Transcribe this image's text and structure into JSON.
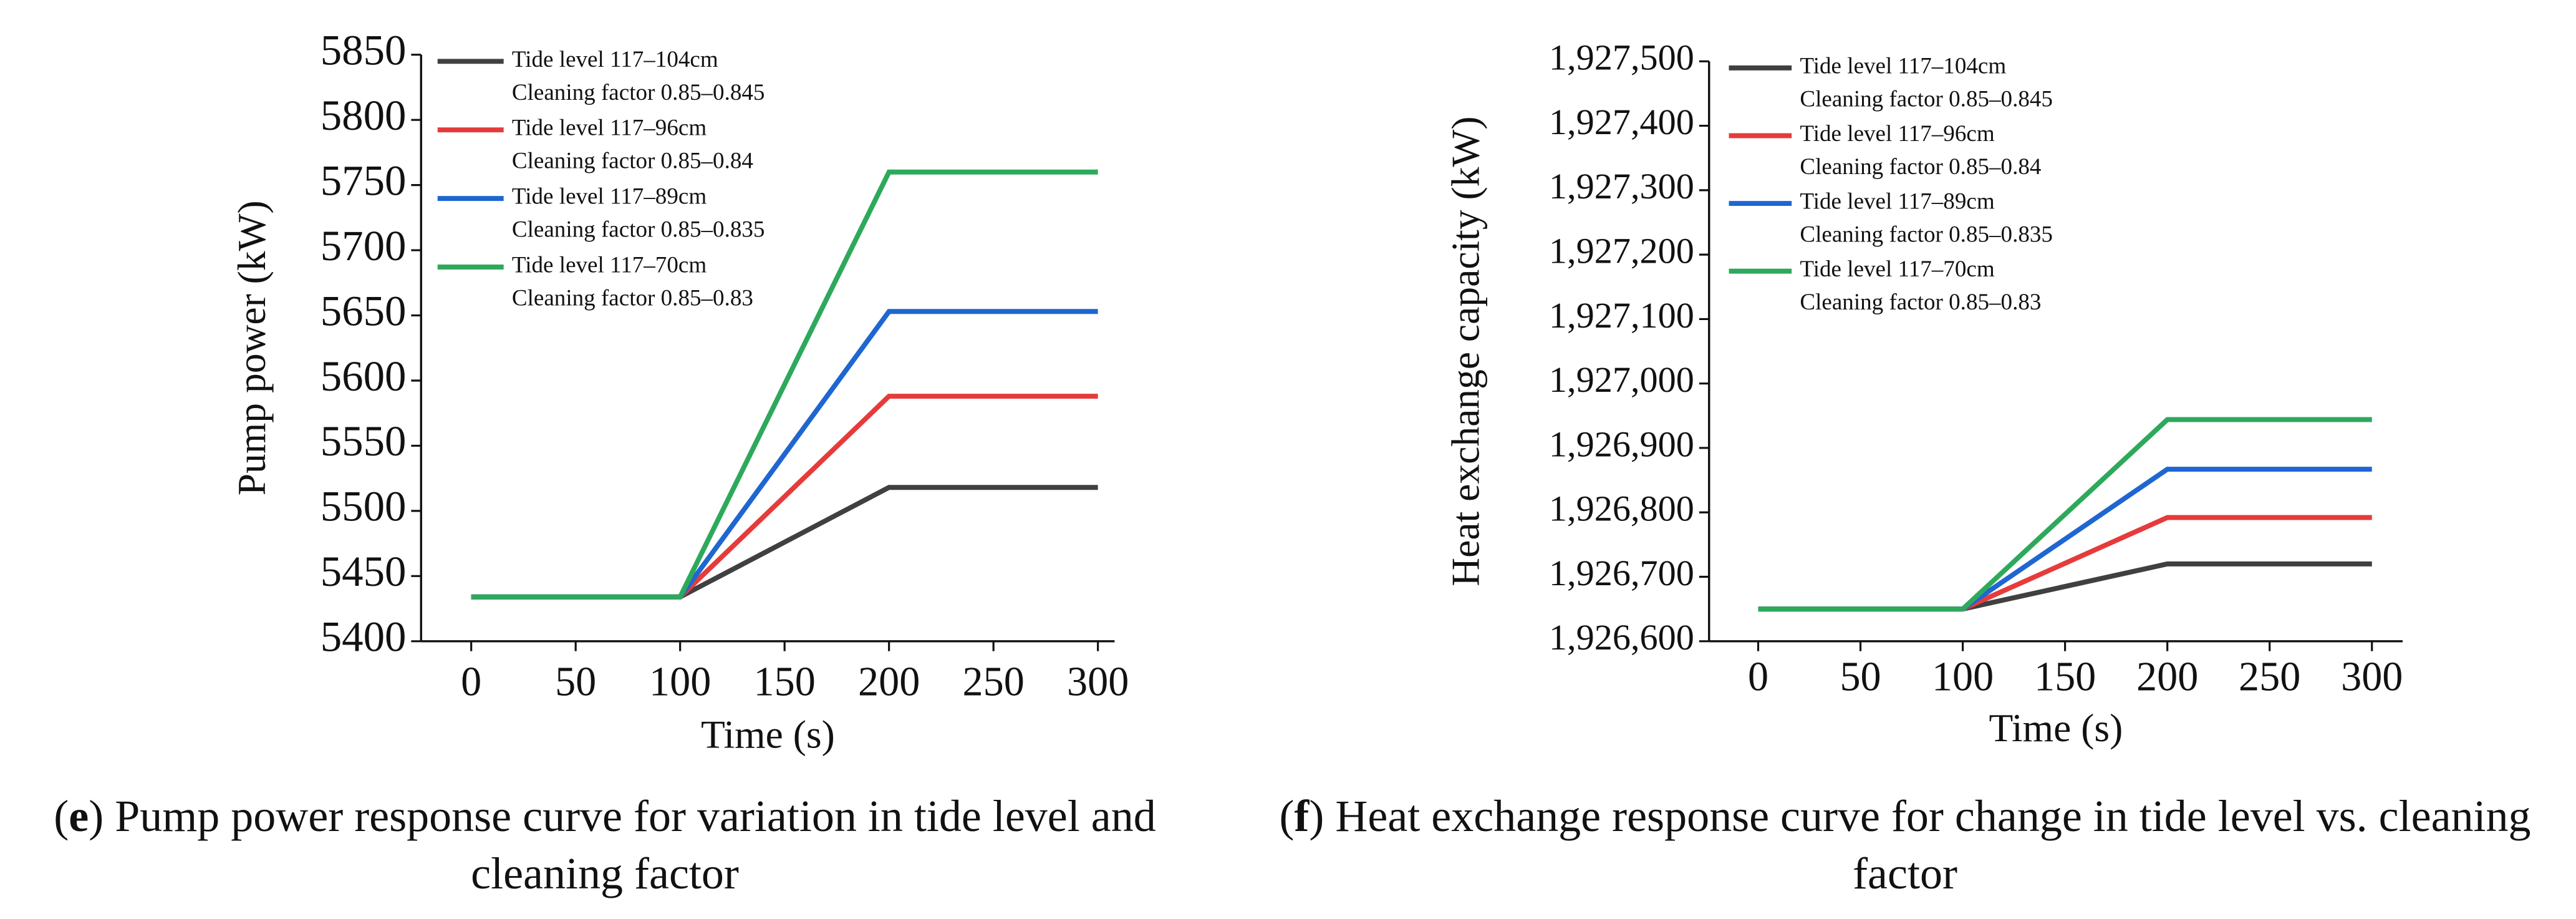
{
  "chart_data": [
    {
      "type": "line",
      "x_label": "Time (s)",
      "y_label": "Pump power (kW)",
      "caption": [
        "(",
        "e",
        ") Pump power response curve for variation in tide level and cleaning factor"
      ],
      "x": [
        0,
        100,
        200,
        300
      ],
      "xlim": [
        -24,
        308
      ],
      "xticks": [
        0,
        50,
        100,
        150,
        200,
        250,
        300
      ],
      "ylim": [
        5400,
        5850
      ],
      "yticks": [
        5400,
        5450,
        5500,
        5550,
        5600,
        5650,
        5700,
        5750,
        5800,
        5850
      ],
      "series": [
        {
          "name": "Tide level 117–104cm",
          "description": "Cleaning factor 0.85–0.845",
          "color": "#404040",
          "values": [
            5434,
            5434,
            5518,
            5518
          ]
        },
        {
          "name": "Tide level 117–96cm",
          "description": "Cleaning factor 0.85–0.84",
          "color": "#e63b3b",
          "values": [
            5434,
            5434,
            5588,
            5588
          ]
        },
        {
          "name": "Tide level 117–89cm",
          "description": "Cleaning factor 0.85–0.835",
          "color": "#1f66d1",
          "values": [
            5434,
            5434,
            5653,
            5653
          ]
        },
        {
          "name": "Tide level 117–70cm",
          "description": "Cleaning factor 0.85–0.83",
          "color": "#2ea95c",
          "values": [
            5434,
            5434,
            5760,
            5760
          ]
        }
      ]
    },
    {
      "type": "line",
      "x_label": "Time (s)",
      "y_label": "Heat exchange capacity (kW)",
      "caption": [
        "(",
        "f",
        ") Heat exchange response curve for change in tide level vs. cleaning factor"
      ],
      "x": [
        0,
        100,
        200,
        300
      ],
      "xlim": [
        -24,
        315
      ],
      "xticks": [
        0,
        50,
        100,
        150,
        200,
        250,
        300
      ],
      "ylim": [
        1926600,
        1927500
      ],
      "yticks": [
        {
          "value": 1926600,
          "label": "1,926,600"
        },
        {
          "value": 1926700,
          "label": "1,926,700"
        },
        {
          "value": 1926800,
          "label": "1,926,800"
        },
        {
          "value": 1926900,
          "label": "1,926,900"
        },
        {
          "value": 1927000,
          "label": "1,927,000"
        },
        {
          "value": 1927100,
          "label": "1,927,100"
        },
        {
          "value": 1927200,
          "label": "1,927,200"
        },
        {
          "value": 1927300,
          "label": "1,927,300"
        },
        {
          "value": 1927400,
          "label": "1,927,400"
        },
        {
          "value": 1927500,
          "label": "1,927,500"
        }
      ],
      "series": [
        {
          "name": "Tide level 117–104cm",
          "description": "Cleaning factor 0.85–0.845",
          "color": "#404040",
          "values": [
            1926650,
            1926650,
            1926720,
            1926720
          ]
        },
        {
          "name": "Tide level 117–96cm",
          "description": "Cleaning factor 0.85–0.84",
          "color": "#e63b3b",
          "values": [
            1926650,
            1926650,
            1926792,
            1926792
          ]
        },
        {
          "name": "Tide level 117–89cm",
          "description": "Cleaning factor 0.85–0.835",
          "color": "#1f66d1",
          "values": [
            1926650,
            1926650,
            1926867,
            1926867
          ]
        },
        {
          "name": "Tide level 117–70cm",
          "description": "Cleaning factor 0.85–0.83",
          "color": "#2ea95c",
          "values": [
            1926650,
            1926650,
            1926944,
            1926944
          ]
        }
      ]
    }
  ]
}
